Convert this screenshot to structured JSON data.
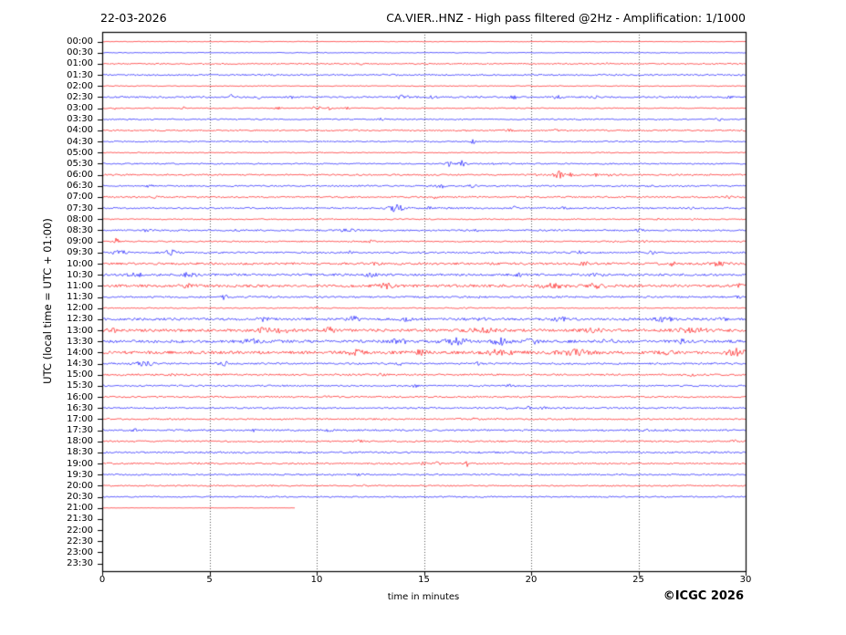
{
  "header": {
    "date": "22-03-2026",
    "title": "CA.VIER..HNZ - High pass filtered @2Hz - Amplification: 1/1000"
  },
  "footer": {
    "copyright": "©ICGC 2026"
  },
  "chart_data": {
    "type": "line",
    "subtype": "helicorder-daily-seismogram",
    "title": "CA.VIER..HNZ - High pass filtered @2Hz - Amplification: 1/1000",
    "date": "22-03-2026",
    "xlabel": "time in minutes",
    "ylabel": "UTC (local time = UTC + 01:00)",
    "xlim": [
      0,
      30
    ],
    "xticks": [
      0,
      5,
      10,
      15,
      20,
      25,
      30
    ],
    "grid_x": [
      5,
      10,
      15,
      20,
      25
    ],
    "grid_style": "dotted",
    "legend": "none",
    "colors": {
      "red": "#ff0000",
      "blue": "#0000ff",
      "grid": "#555555",
      "axis": "#000000",
      "background": "#ffffff"
    },
    "rows": [
      {
        "label": "00:00",
        "color": "red",
        "base": 0.35,
        "events": []
      },
      {
        "label": "00:30",
        "color": "blue",
        "base": 0.45,
        "events": []
      },
      {
        "label": "01:00",
        "color": "red",
        "base": 0.7,
        "events": [
          [
            12,
            1,
            0.1
          ],
          [
            23.5,
            0.8,
            0.1
          ]
        ]
      },
      {
        "label": "01:30",
        "color": "blue",
        "base": 0.9,
        "events": []
      },
      {
        "label": "02:00",
        "color": "red",
        "base": 0.5,
        "events": []
      },
      {
        "label": "02:30",
        "color": "blue",
        "base": 0.9,
        "events": [
          [
            6,
            2.8,
            0.07
          ],
          [
            7.3,
            1.5,
            0.07
          ],
          [
            8.8,
            1.2,
            0.07
          ],
          [
            14,
            1.8,
            0.2
          ],
          [
            15.4,
            1.8,
            0.12
          ],
          [
            17.5,
            1.2,
            0.1
          ],
          [
            19.2,
            2,
            0.1
          ],
          [
            21.2,
            1.4,
            0.15
          ],
          [
            23,
            1.2,
            0.1
          ],
          [
            29.3,
            1.6,
            0.12
          ]
        ]
      },
      {
        "label": "03:00",
        "color": "red",
        "base": 0.55,
        "events": [
          [
            0.6,
            1.2,
            0.08
          ],
          [
            3.8,
            1.4,
            0.08
          ],
          [
            8.2,
            1.4,
            0.1
          ],
          [
            10,
            2.8,
            0.12
          ],
          [
            10.6,
            1.6,
            0.08
          ],
          [
            11.4,
            1.2,
            0.06
          ]
        ]
      },
      {
        "label": "03:30",
        "color": "blue",
        "base": 0.7,
        "events": [
          [
            1.2,
            1,
            0.08
          ],
          [
            13,
            1.1,
            0.08
          ],
          [
            28.7,
            2.2,
            0.1
          ]
        ]
      },
      {
        "label": "04:00",
        "color": "red",
        "base": 0.8,
        "events": [
          [
            17,
            1,
            0.1
          ],
          [
            19,
            1,
            0.08
          ],
          [
            21.2,
            1.3,
            0.1
          ]
        ]
      },
      {
        "label": "04:30",
        "color": "blue",
        "base": 0.7,
        "events": [
          [
            17.3,
            3,
            0.07
          ]
        ]
      },
      {
        "label": "05:00",
        "color": "red",
        "base": 0.55,
        "events": []
      },
      {
        "label": "05:30",
        "color": "blue",
        "base": 0.75,
        "events": [
          [
            16.2,
            2.6,
            0.1
          ],
          [
            16.8,
            3.2,
            0.12
          ],
          [
            18.2,
            1.2,
            0.1
          ]
        ]
      },
      {
        "label": "06:00",
        "color": "red",
        "base": 0.85,
        "events": [
          [
            20.3,
            1.6,
            0.08
          ],
          [
            21.3,
            3.6,
            0.15
          ],
          [
            21.9,
            3,
            0.12
          ],
          [
            23,
            1.8,
            0.15
          ],
          [
            23.7,
            1.4,
            0.1
          ]
        ]
      },
      {
        "label": "06:30",
        "color": "blue",
        "base": 0.85,
        "events": [
          [
            2.2,
            1.2,
            0.1
          ],
          [
            15.8,
            2.2,
            0.2
          ],
          [
            17.3,
            1.6,
            0.12
          ],
          [
            25.5,
            1,
            0.1
          ]
        ]
      },
      {
        "label": "07:00",
        "color": "red",
        "base": 0.9,
        "events": [
          [
            2.5,
            1.2,
            0.08
          ],
          [
            15.5,
            1.4,
            0.1
          ],
          [
            24.8,
            1.1,
            0.08
          ],
          [
            29.2,
            1.4,
            0.1
          ]
        ]
      },
      {
        "label": "07:30",
        "color": "blue",
        "base": 0.9,
        "events": [
          [
            13.7,
            3.6,
            0.25
          ],
          [
            15.3,
            1.4,
            0.1
          ],
          [
            19.2,
            1.5,
            0.1
          ],
          [
            21.6,
            1.5,
            0.1
          ],
          [
            27.5,
            1.2,
            0.1
          ]
        ]
      },
      {
        "label": "08:00",
        "color": "red",
        "base": 0.65,
        "events": [
          [
            26,
            1.2,
            0.08
          ],
          [
            27.6,
            1.1,
            0.08
          ]
        ]
      },
      {
        "label": "08:30",
        "color": "blue",
        "base": 0.85,
        "events": [
          [
            2.1,
            1.4,
            0.12
          ],
          [
            6.3,
            1.3,
            0.1
          ],
          [
            11.5,
            1.2,
            0.3
          ],
          [
            17.4,
            1.5,
            0.1
          ],
          [
            25,
            1.6,
            0.15
          ]
        ]
      },
      {
        "label": "09:00",
        "color": "red",
        "base": 0.75,
        "events": [
          [
            0.65,
            3.4,
            0.07
          ],
          [
            12.5,
            1,
            0.2
          ],
          [
            25.4,
            1.3,
            0.1
          ]
        ]
      },
      {
        "label": "09:30",
        "color": "blue",
        "base": 0.95,
        "events": [
          [
            0.8,
            2,
            0.25
          ],
          [
            3.2,
            2.4,
            0.2
          ],
          [
            11.5,
            1.2,
            0.1
          ],
          [
            22.2,
            1.6,
            0.2
          ],
          [
            25.6,
            1.8,
            0.12
          ]
        ]
      },
      {
        "label": "10:00",
        "color": "red",
        "base": 1.2,
        "events": [
          [
            12.8,
            1.3,
            0.2
          ],
          [
            22.5,
            2,
            0.15
          ],
          [
            26.5,
            1.8,
            0.3
          ],
          [
            28.6,
            1.8,
            0.3
          ]
        ]
      },
      {
        "label": "10:30",
        "color": "blue",
        "base": 1.2,
        "events": [
          [
            1.5,
            2,
            0.3
          ],
          [
            4,
            2,
            0.25
          ],
          [
            12.5,
            1.4,
            0.2
          ],
          [
            19.5,
            1.6,
            0.2
          ],
          [
            23,
            1.5,
            0.2
          ]
        ]
      },
      {
        "label": "11:00",
        "color": "red",
        "base": 1.4,
        "events": [
          [
            4,
            1.8,
            0.3
          ],
          [
            13.2,
            2.4,
            0.25
          ],
          [
            21,
            2,
            0.4
          ],
          [
            23,
            1.8,
            0.3
          ],
          [
            29.8,
            2,
            0.15
          ]
        ]
      },
      {
        "label": "11:30",
        "color": "blue",
        "base": 0.95,
        "events": [
          [
            5.7,
            2.6,
            0.08
          ],
          [
            17.5,
            1.4,
            0.1
          ],
          [
            29.7,
            2,
            0.08
          ]
        ]
      },
      {
        "label": "12:00",
        "color": "red",
        "base": 0.6,
        "events": [
          [
            10,
            1.3,
            0.1
          ],
          [
            17,
            0.9,
            0.1
          ]
        ]
      },
      {
        "label": "12:30",
        "color": "blue",
        "base": 1.3,
        "events": [
          [
            7.5,
            1.6,
            0.2
          ],
          [
            11.7,
            2.4,
            0.2
          ],
          [
            14.2,
            1.8,
            0.2
          ],
          [
            17.6,
            1.8,
            0.15
          ],
          [
            21.4,
            1.8,
            0.3
          ],
          [
            26.2,
            2.6,
            0.25
          ],
          [
            29,
            1.6,
            0.15
          ]
        ]
      },
      {
        "label": "13:00",
        "color": "red",
        "base": 1.5,
        "events": [
          [
            0.5,
            1.6,
            0.2
          ],
          [
            7.6,
            2.4,
            0.25
          ],
          [
            8.4,
            2.2,
            0.2
          ],
          [
            10.6,
            2.4,
            0.2
          ],
          [
            17.8,
            1.8,
            0.5
          ],
          [
            22.8,
            1.8,
            0.4
          ],
          [
            27.5,
            1.8,
            0.5
          ]
        ]
      },
      {
        "label": "13:30",
        "color": "blue",
        "base": 1.5,
        "events": [
          [
            7,
            2.4,
            0.3
          ],
          [
            13.8,
            2.8,
            0.25
          ],
          [
            16.5,
            3,
            0.4
          ],
          [
            18.6,
            3,
            0.3
          ],
          [
            20,
            2.4,
            0.2
          ],
          [
            23.6,
            1.8,
            0.2
          ],
          [
            27,
            1.6,
            0.2
          ]
        ]
      },
      {
        "label": "14:00",
        "color": "red",
        "base": 1.6,
        "events": [
          [
            11.8,
            2.8,
            0.25
          ],
          [
            14.8,
            1.8,
            0.3
          ],
          [
            18.5,
            2.4,
            0.5
          ],
          [
            22,
            2.4,
            0.6
          ],
          [
            26.3,
            1.8,
            0.3
          ],
          [
            29.5,
            3.4,
            0.3
          ]
        ]
      },
      {
        "label": "14:30",
        "color": "blue",
        "base": 0.95,
        "events": [
          [
            2,
            2.4,
            0.3
          ],
          [
            5.7,
            2,
            0.2
          ],
          [
            14,
            1.8,
            0.15
          ],
          [
            17.5,
            1.4,
            0.1
          ]
        ]
      },
      {
        "label": "15:00",
        "color": "red",
        "base": 0.95,
        "events": [
          [
            0.8,
            1.4,
            0.1
          ],
          [
            3.3,
            1.3,
            0.1
          ],
          [
            13,
            1.1,
            0.1
          ],
          [
            27.5,
            1.1,
            0.1
          ]
        ]
      },
      {
        "label": "15:30",
        "color": "blue",
        "base": 0.85,
        "events": [
          [
            14.6,
            1.3,
            0.1
          ],
          [
            19,
            1.1,
            0.1
          ]
        ]
      },
      {
        "label": "16:00",
        "color": "red",
        "base": 0.85,
        "events": [
          [
            10.5,
            0.9,
            0.1
          ]
        ]
      },
      {
        "label": "16:30",
        "color": "blue",
        "base": 0.85,
        "events": [
          [
            19,
            1.8,
            0.12
          ],
          [
            19.9,
            1.6,
            0.12
          ],
          [
            20.6,
            1.4,
            0.1
          ]
        ]
      },
      {
        "label": "17:00",
        "color": "red",
        "base": 0.85,
        "events": [
          [
            16.6,
            1.2,
            0.08
          ],
          [
            17.3,
            1.2,
            0.08
          ]
        ]
      },
      {
        "label": "17:30",
        "color": "blue",
        "base": 0.95,
        "events": [
          [
            1.5,
            1.2,
            0.1
          ],
          [
            7,
            1.2,
            0.1
          ],
          [
            10.6,
            1.2,
            0.1
          ],
          [
            25.3,
            1.3,
            0.1
          ]
        ]
      },
      {
        "label": "18:00",
        "color": "red",
        "base": 0.85,
        "events": [
          [
            12,
            1.5,
            0.12
          ],
          [
            29.5,
            1.2,
            0.1
          ]
        ]
      },
      {
        "label": "18:30",
        "color": "blue",
        "base": 1.0,
        "events": []
      },
      {
        "label": "19:00",
        "color": "red",
        "base": 0.85,
        "events": [
          [
            4.5,
            1.2,
            0.08
          ],
          [
            15,
            1.6,
            0.15
          ],
          [
            15.6,
            1.5,
            0.1
          ],
          [
            17,
            3.4,
            0.07
          ]
        ]
      },
      {
        "label": "19:30",
        "color": "blue",
        "base": 0.85,
        "events": [
          [
            12,
            0.9,
            0.1
          ]
        ]
      },
      {
        "label": "20:00",
        "color": "red",
        "base": 0.75,
        "events": [
          [
            8,
            1.1,
            0.08
          ],
          [
            12.2,
            0.9,
            0.1
          ]
        ]
      },
      {
        "label": "20:30",
        "color": "blue",
        "base": 0.75,
        "events": []
      },
      {
        "label": "21:00",
        "color": "red",
        "base": 0.2,
        "events": [],
        "coverage": [
          0,
          9
        ]
      },
      {
        "label": "21:30",
        "color": "blue",
        "base": 0,
        "events": [],
        "coverage": [
          0,
          0
        ]
      },
      {
        "label": "22:00",
        "color": "red",
        "base": 0,
        "events": [],
        "coverage": [
          0,
          0
        ]
      },
      {
        "label": "22:30",
        "color": "blue",
        "base": 0,
        "events": [],
        "coverage": [
          0,
          0
        ]
      },
      {
        "label": "23:00",
        "color": "red",
        "base": 0,
        "events": [],
        "coverage": [
          0,
          0
        ]
      },
      {
        "label": "23:30",
        "color": "blue",
        "base": 0,
        "events": [],
        "coverage": [
          0,
          0
        ]
      }
    ]
  }
}
